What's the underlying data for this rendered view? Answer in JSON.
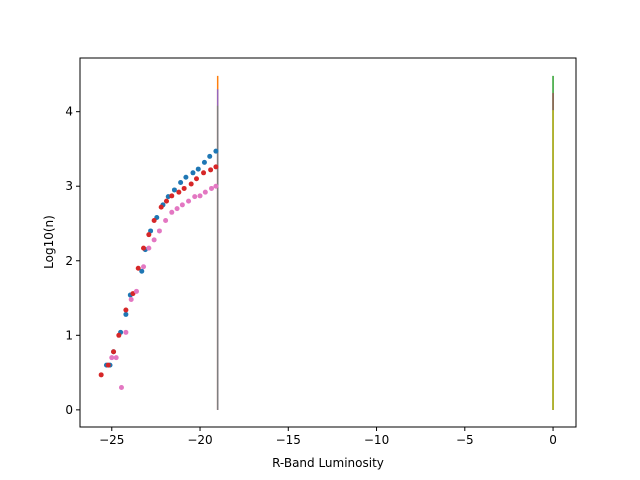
{
  "chart_data": {
    "type": "scatter",
    "title": "",
    "xlabel": "R-Band Luminosity",
    "ylabel": "Log10(n)",
    "xlim": [
      -26.8,
      1.3
    ],
    "ylim": [
      -0.23,
      4.72
    ],
    "xticks": [
      -25,
      -20,
      -15,
      -10,
      -5,
      0
    ],
    "xtick_labels": [
      "−25",
      "−20",
      "−15",
      "−10",
      "−5",
      "0"
    ],
    "yticks": [
      0,
      1,
      2,
      3,
      4
    ],
    "ytick_labels": [
      "0",
      "1",
      "2",
      "3",
      "4"
    ],
    "grid": false,
    "legend": "none",
    "scatter_series": [
      {
        "color": "#1f77b4",
        "points": [
          [
            -25.3,
            0.6
          ],
          [
            -25.1,
            0.6
          ],
          [
            -24.9,
            0.78
          ],
          [
            -24.5,
            1.04
          ],
          [
            -24.2,
            1.28
          ],
          [
            -23.95,
            1.54
          ],
          [
            -23.3,
            1.86
          ],
          [
            -23.1,
            2.15
          ],
          [
            -22.8,
            2.4
          ],
          [
            -22.45,
            2.58
          ],
          [
            -22.1,
            2.75
          ],
          [
            -21.8,
            2.86
          ],
          [
            -21.45,
            2.95
          ],
          [
            -21.1,
            3.05
          ],
          [
            -20.8,
            3.12
          ],
          [
            -20.4,
            3.18
          ],
          [
            -20.1,
            3.23
          ],
          [
            -19.75,
            3.32
          ],
          [
            -19.45,
            3.4
          ],
          [
            -19.1,
            3.47
          ]
        ]
      },
      {
        "color": "#d62728",
        "points": [
          [
            -25.6,
            0.47
          ],
          [
            -25.2,
            0.6
          ],
          [
            -24.9,
            0.78
          ],
          [
            -24.6,
            1.0
          ],
          [
            -24.2,
            1.34
          ],
          [
            -23.8,
            1.56
          ],
          [
            -23.5,
            1.9
          ],
          [
            -23.2,
            2.17
          ],
          [
            -22.9,
            2.35
          ],
          [
            -22.6,
            2.54
          ],
          [
            -22.2,
            2.72
          ],
          [
            -21.9,
            2.8
          ],
          [
            -21.6,
            2.87
          ],
          [
            -21.2,
            2.92
          ],
          [
            -20.9,
            2.97
          ],
          [
            -20.5,
            3.03
          ],
          [
            -20.2,
            3.1
          ],
          [
            -19.8,
            3.18
          ],
          [
            -19.4,
            3.22
          ],
          [
            -19.1,
            3.26
          ]
        ]
      },
      {
        "color": "#e377c2",
        "points": [
          [
            -25.0,
            0.7
          ],
          [
            -24.75,
            0.7
          ],
          [
            -24.45,
            0.3
          ],
          [
            -24.2,
            1.04
          ],
          [
            -23.9,
            1.48
          ],
          [
            -23.6,
            1.59
          ],
          [
            -23.2,
            1.92
          ],
          [
            -22.9,
            2.17
          ],
          [
            -22.6,
            2.28
          ],
          [
            -22.3,
            2.4
          ],
          [
            -21.95,
            2.54
          ],
          [
            -21.6,
            2.65
          ],
          [
            -21.3,
            2.7
          ],
          [
            -21.0,
            2.75
          ],
          [
            -20.65,
            2.8
          ],
          [
            -20.3,
            2.86
          ],
          [
            -20.0,
            2.87
          ],
          [
            -19.7,
            2.92
          ],
          [
            -19.35,
            2.97
          ],
          [
            -19.1,
            3.0
          ]
        ]
      }
    ],
    "vertical_lines": [
      {
        "x": -19.0,
        "y0": 0,
        "y1": 4.48,
        "color": "#ff7f0e"
      },
      {
        "x": -19.0,
        "y0": 0,
        "y1": 4.3,
        "color": "#9467bd"
      },
      {
        "x": -19.0,
        "y0": 0,
        "y1": 4.08,
        "color": "#7f7f7f"
      },
      {
        "x": 0,
        "y0": 0,
        "y1": 4.48,
        "color": "#2ca02c"
      },
      {
        "x": 0,
        "y0": 0,
        "y1": 4.25,
        "color": "#8c564b"
      },
      {
        "x": 0,
        "y0": 0,
        "y1": 4.02,
        "color": "#bcbd22"
      }
    ]
  }
}
